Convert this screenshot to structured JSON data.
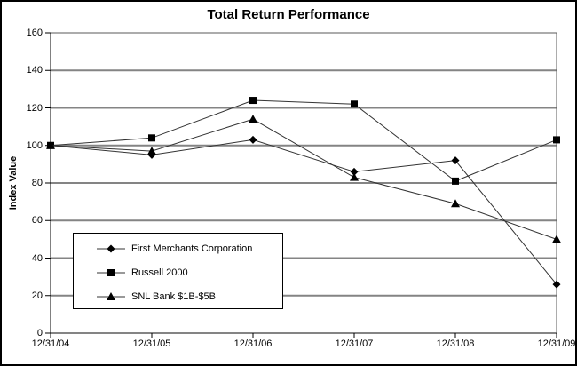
{
  "chart_data": {
    "type": "line",
    "title": "Total Return Performance",
    "xlabel": "",
    "ylabel": "Index Value",
    "categories": [
      "12/31/04",
      "12/31/05",
      "12/31/06",
      "12/31/07",
      "12/31/08",
      "12/31/09"
    ],
    "series": [
      {
        "name": "First Merchants Corporation",
        "marker": "diamond",
        "values": [
          100,
          95,
          103,
          86,
          92,
          26
        ]
      },
      {
        "name": "Russell 2000",
        "marker": "square",
        "values": [
          100,
          104,
          124,
          122,
          81,
          103
        ]
      },
      {
        "name": "SNL Bank $1B-$5B",
        "marker": "triangle",
        "values": [
          100,
          97,
          114,
          83,
          69,
          50
        ]
      }
    ],
    "ylim": [
      0,
      160
    ],
    "yticks": [
      0,
      20,
      40,
      60,
      80,
      100,
      120,
      140,
      160
    ],
    "grid": true,
    "legend_position": "inside-lower-left",
    "colors": {
      "line": "#333333",
      "marker": "#000000",
      "gridline": "#848484",
      "axis_frame": "#5a5a5a",
      "text": "#000000",
      "background": "#ffffff"
    }
  }
}
